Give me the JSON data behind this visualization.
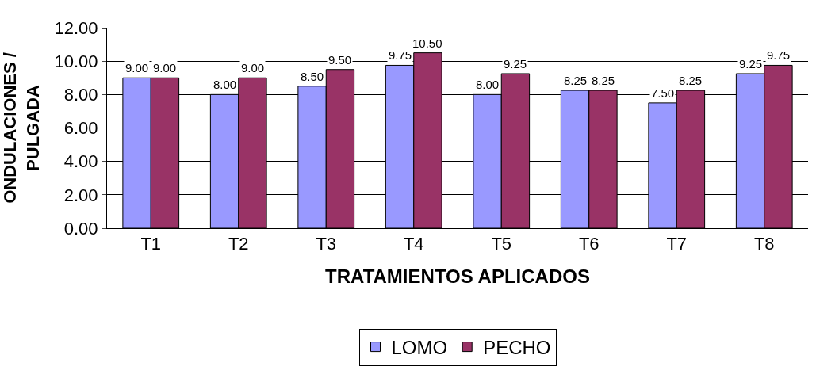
{
  "chart_data": {
    "type": "bar",
    "xlabel": "TRATAMIENTOS APLICADOS",
    "ylabel": "ONDULACIONES /\nPULGADA",
    "categories": [
      "T1",
      "T2",
      "T3",
      "T4",
      "T5",
      "T6",
      "T7",
      "T8"
    ],
    "series": [
      {
        "name": "LOMO",
        "color": "#9999ff",
        "values": [
          9.0,
          8.0,
          8.5,
          9.75,
          8.0,
          8.25,
          7.5,
          9.25
        ],
        "value_labels": [
          "9.00",
          "8.00",
          "8.50",
          "9.75",
          "8.00",
          "8.25",
          "7.50",
          "9.25"
        ]
      },
      {
        "name": "PECHO",
        "color": "#993366",
        "values": [
          9.0,
          9.0,
          9.5,
          10.5,
          9.25,
          8.25,
          8.25,
          9.75
        ],
        "value_labels": [
          "9.00",
          "9.00",
          "9.50",
          "10.50",
          "9.25",
          "8.25",
          "8.25",
          "9.75"
        ]
      }
    ],
    "ylim": [
      0,
      12
    ],
    "yticks": [
      {
        "value": 0,
        "label": "0.00"
      },
      {
        "value": 2,
        "label": "2.00"
      },
      {
        "value": 4,
        "label": "4.00"
      },
      {
        "value": 6,
        "label": "6.00"
      },
      {
        "value": 8,
        "label": "8.00"
      },
      {
        "value": 10,
        "label": "10.00"
      },
      {
        "value": 12,
        "label": "12.00"
      }
    ],
    "grid": "y",
    "legend": "bottom"
  }
}
